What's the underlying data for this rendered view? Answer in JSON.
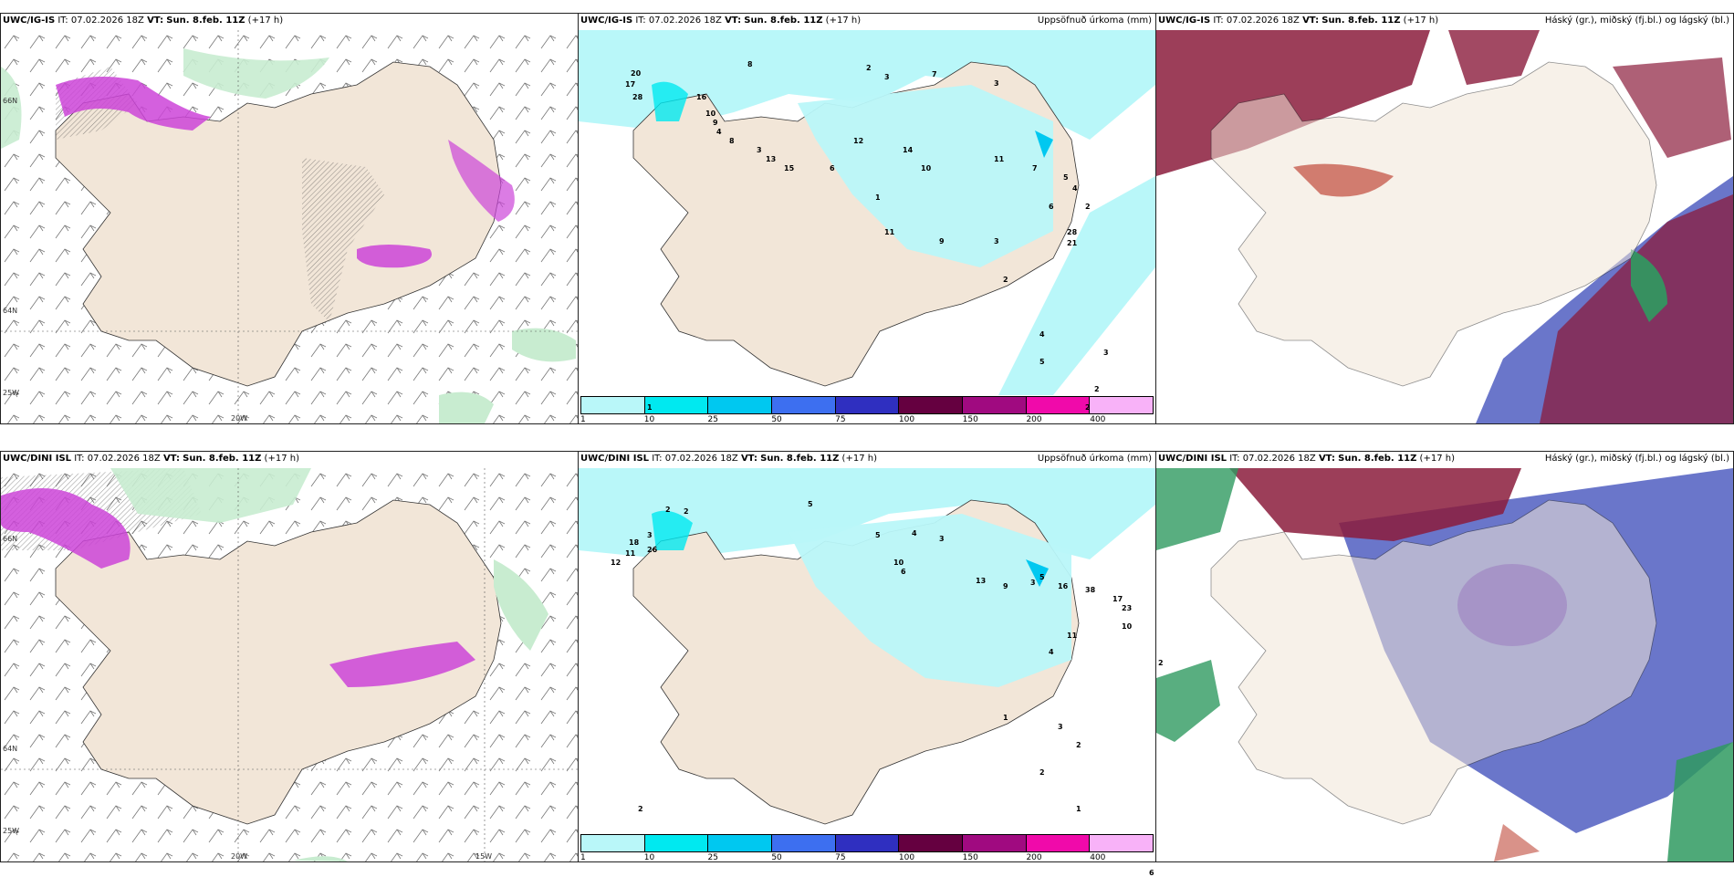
{
  "panels": {
    "row1_left": {
      "model": "UWC/IG-IS",
      "it": "IT: 07.02.2026 18Z",
      "vt_label": "VT:",
      "vt": "Sun. 8.feb. 11Z",
      "lead": "(+17 h)",
      "lon_labels": [
        "20W"
      ],
      "lat_labels": [
        "66N",
        "64N",
        "25W"
      ]
    },
    "row1_mid": {
      "model": "UWC/IG-IS",
      "it": "IT: 07.02.2026 18Z",
      "vt_label": "VT:",
      "vt": "Sun. 8.feb. 11Z",
      "lead": "(+17 h)",
      "right_title": "Uppsöfnuð úrkoma (mm)"
    },
    "row1_right": {
      "model": "UWC/IG-IS",
      "it": "IT: 07.02.2026 18Z",
      "vt_label": "VT:",
      "vt": "Sun. 8.feb. 11Z",
      "lead": "(+17 h)",
      "right_title": "Háský (gr.), miðský (fj.bl.) og lágský (bl.)"
    },
    "row2_left": {
      "model": "UWC/DINI ISL",
      "it": "IT: 07.02.2026 18Z",
      "vt_label": "VT:",
      "vt": "Sun. 8.feb. 11Z",
      "lead": "(+17 h)",
      "lon_labels": [
        "20W",
        "15W"
      ],
      "lat_labels": [
        "66N",
        "64N",
        "25W"
      ]
    },
    "row2_mid": {
      "model": "UWC/DINI ISL",
      "it": "IT: 07.02.2026 18Z",
      "vt_label": "VT:",
      "vt": "Sun. 8.feb. 11Z",
      "lead": "(+17 h)",
      "right_title": "Uppsöfnuð úrkoma (mm)"
    },
    "row2_right": {
      "model": "UWC/DINI ISL",
      "it": "IT: 07.02.2026 18Z",
      "vt_label": "VT:",
      "vt": "Sun. 8.feb. 11Z",
      "lead": "(+17 h)",
      "right_title": "Háský (gr.), miðský (fj.bl.) og lágský (bl.)"
    }
  },
  "colorbar": {
    "labels": [
      "1",
      "10",
      "25",
      "50",
      "75",
      "100",
      "150",
      "200",
      "400"
    ],
    "colors": [
      "#b9f7f9",
      "#00e9f0",
      "#00c8f0",
      "#3d6ff0",
      "#2f2fc0",
      "#650040",
      "#a00a80",
      "#f00aaa",
      "#f8b2f8"
    ]
  },
  "precip_values_top": [
    "8",
    "2",
    "3",
    "7",
    "1",
    "3",
    "20",
    "17",
    "28",
    "16",
    "10",
    "9",
    "4",
    "8",
    "3",
    "13",
    "15",
    "6",
    "12",
    "14",
    "10",
    "11",
    "7",
    "5",
    "4",
    "2",
    "6",
    "28",
    "21",
    "3",
    "9",
    "11",
    "1",
    "2",
    "4",
    "5",
    "3",
    "2",
    "2"
  ],
  "precip_values_bottom": [
    "5",
    "2",
    "2",
    "3",
    "5",
    "4",
    "3",
    "18",
    "26",
    "12",
    "11",
    "10",
    "6",
    "13",
    "9",
    "3",
    "5",
    "16",
    "38",
    "17",
    "23",
    "10",
    "11",
    "4",
    "2",
    "1",
    "3",
    "2",
    "2",
    "1",
    "6",
    "2"
  ],
  "colors": {
    "land": "#f2e6d8",
    "sea": "#ffffff",
    "precip_light": "#b9f7f9",
    "precip_mid": "#00e9f0",
    "cloud_high": "#8b1c3c",
    "cloud_mid": "#3848b8",
    "cloud_low": "#2f9a60",
    "ice": "#e3f5e6",
    "snow": "#cc44d8"
  }
}
